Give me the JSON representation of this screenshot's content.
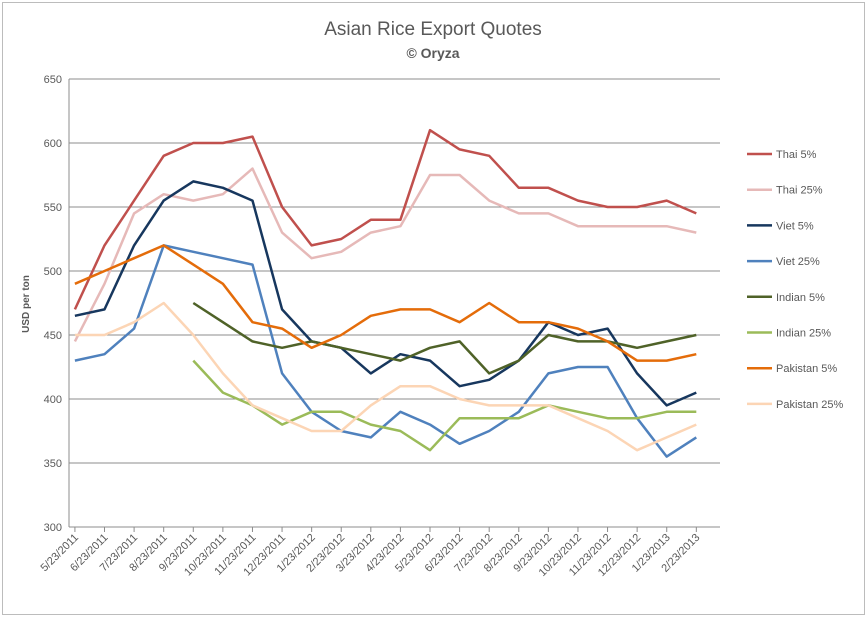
{
  "chart_data": {
    "type": "line",
    "title": "Asian Rice Export Quotes",
    "subtitle": "© Oryza",
    "ylabel": "USD per ton",
    "xlabel": "",
    "ylim": [
      300,
      650
    ],
    "yticks": [
      300,
      350,
      400,
      450,
      500,
      550,
      600,
      650
    ],
    "grid": "horizontal",
    "legend_position": "right",
    "categories": [
      "5/23/2011",
      "6/23/2011",
      "7/23/2011",
      "8/23/2011",
      "9/23/2011",
      "10/23/2011",
      "11/23/2011",
      "12/23/2011",
      "1/23/2012",
      "2/23/2012",
      "3/23/2012",
      "4/23/2012",
      "5/23/2012",
      "6/23/2012",
      "7/23/2012",
      "8/23/2012",
      "9/23/2012",
      "10/23/2012",
      "11/23/2012",
      "12/23/2012",
      "1/23/2013",
      "2/23/2013"
    ],
    "series": [
      {
        "name": "Thai 5%",
        "color": "#c0504d",
        "values": [
          470,
          520,
          555,
          590,
          600,
          600,
          605,
          550,
          520,
          525,
          540,
          540,
          610,
          595,
          590,
          565,
          565,
          555,
          550,
          550,
          555,
          545
        ]
      },
      {
        "name": "Thai 25%",
        "color": "#e6b9b8",
        "values": [
          445,
          490,
          545,
          560,
          555,
          560,
          580,
          530,
          510,
          515,
          530,
          535,
          575,
          575,
          555,
          545,
          545,
          535,
          535,
          535,
          535,
          530
        ]
      },
      {
        "name": "Viet 5%",
        "color": "#17375e",
        "values": [
          465,
          470,
          520,
          555,
          570,
          565,
          555,
          470,
          445,
          440,
          420,
          435,
          430,
          410,
          415,
          430,
          460,
          450,
          455,
          420,
          395,
          405
        ]
      },
      {
        "name": "Viet 25%",
        "color": "#4f81bd",
        "values": [
          430,
          435,
          455,
          520,
          515,
          510,
          505,
          420,
          390,
          375,
          370,
          390,
          380,
          365,
          375,
          390,
          420,
          425,
          425,
          385,
          355,
          370
        ]
      },
      {
        "name": "Indian 5%",
        "color": "#4f6228",
        "values": [
          null,
          null,
          null,
          null,
          475,
          460,
          445,
          440,
          445,
          440,
          435,
          430,
          440,
          445,
          420,
          430,
          450,
          445,
          445,
          440,
          445,
          450
        ]
      },
      {
        "name": "Indian 25%",
        "color": "#9bbb59",
        "values": [
          null,
          null,
          null,
          null,
          430,
          405,
          395,
          380,
          390,
          390,
          380,
          375,
          360,
          385,
          385,
          385,
          395,
          390,
          385,
          385,
          390,
          390
        ]
      },
      {
        "name": "Pakistan 5%",
        "color": "#e46c0a",
        "values": [
          490,
          500,
          510,
          520,
          505,
          490,
          460,
          455,
          440,
          450,
          465,
          470,
          470,
          460,
          475,
          460,
          460,
          455,
          445,
          430,
          430,
          435
        ]
      },
      {
        "name": "Pakistan 25%",
        "color": "#fcd5b5",
        "values": [
          450,
          450,
          460,
          475,
          450,
          420,
          395,
          385,
          375,
          375,
          395,
          410,
          410,
          400,
          395,
          395,
          395,
          385,
          375,
          360,
          370,
          380
        ]
      }
    ]
  }
}
